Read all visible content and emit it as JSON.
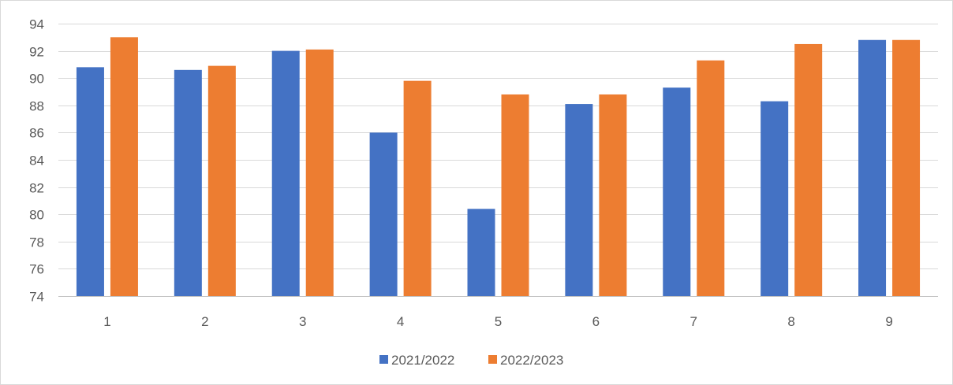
{
  "chart_data": {
    "type": "bar",
    "title": "",
    "xlabel": "",
    "ylabel": "",
    "categories": [
      "1",
      "2",
      "3",
      "4",
      "5",
      "6",
      "7",
      "8",
      "9"
    ],
    "ylim": [
      74,
      94
    ],
    "yticks": [
      74,
      76,
      78,
      80,
      82,
      84,
      86,
      88,
      90,
      92,
      94
    ],
    "grid": true,
    "legend_position": "bottom",
    "series": [
      {
        "name": "2021/2022",
        "color": "#4472C4",
        "values": [
          90.8,
          90.6,
          92.0,
          86.0,
          80.4,
          88.1,
          89.3,
          88.3,
          92.8
        ]
      },
      {
        "name": "2022/2023",
        "color": "#ED7D31",
        "values": [
          93.0,
          90.9,
          92.1,
          89.8,
          88.8,
          88.8,
          91.3,
          92.5,
          92.8
        ]
      }
    ]
  }
}
